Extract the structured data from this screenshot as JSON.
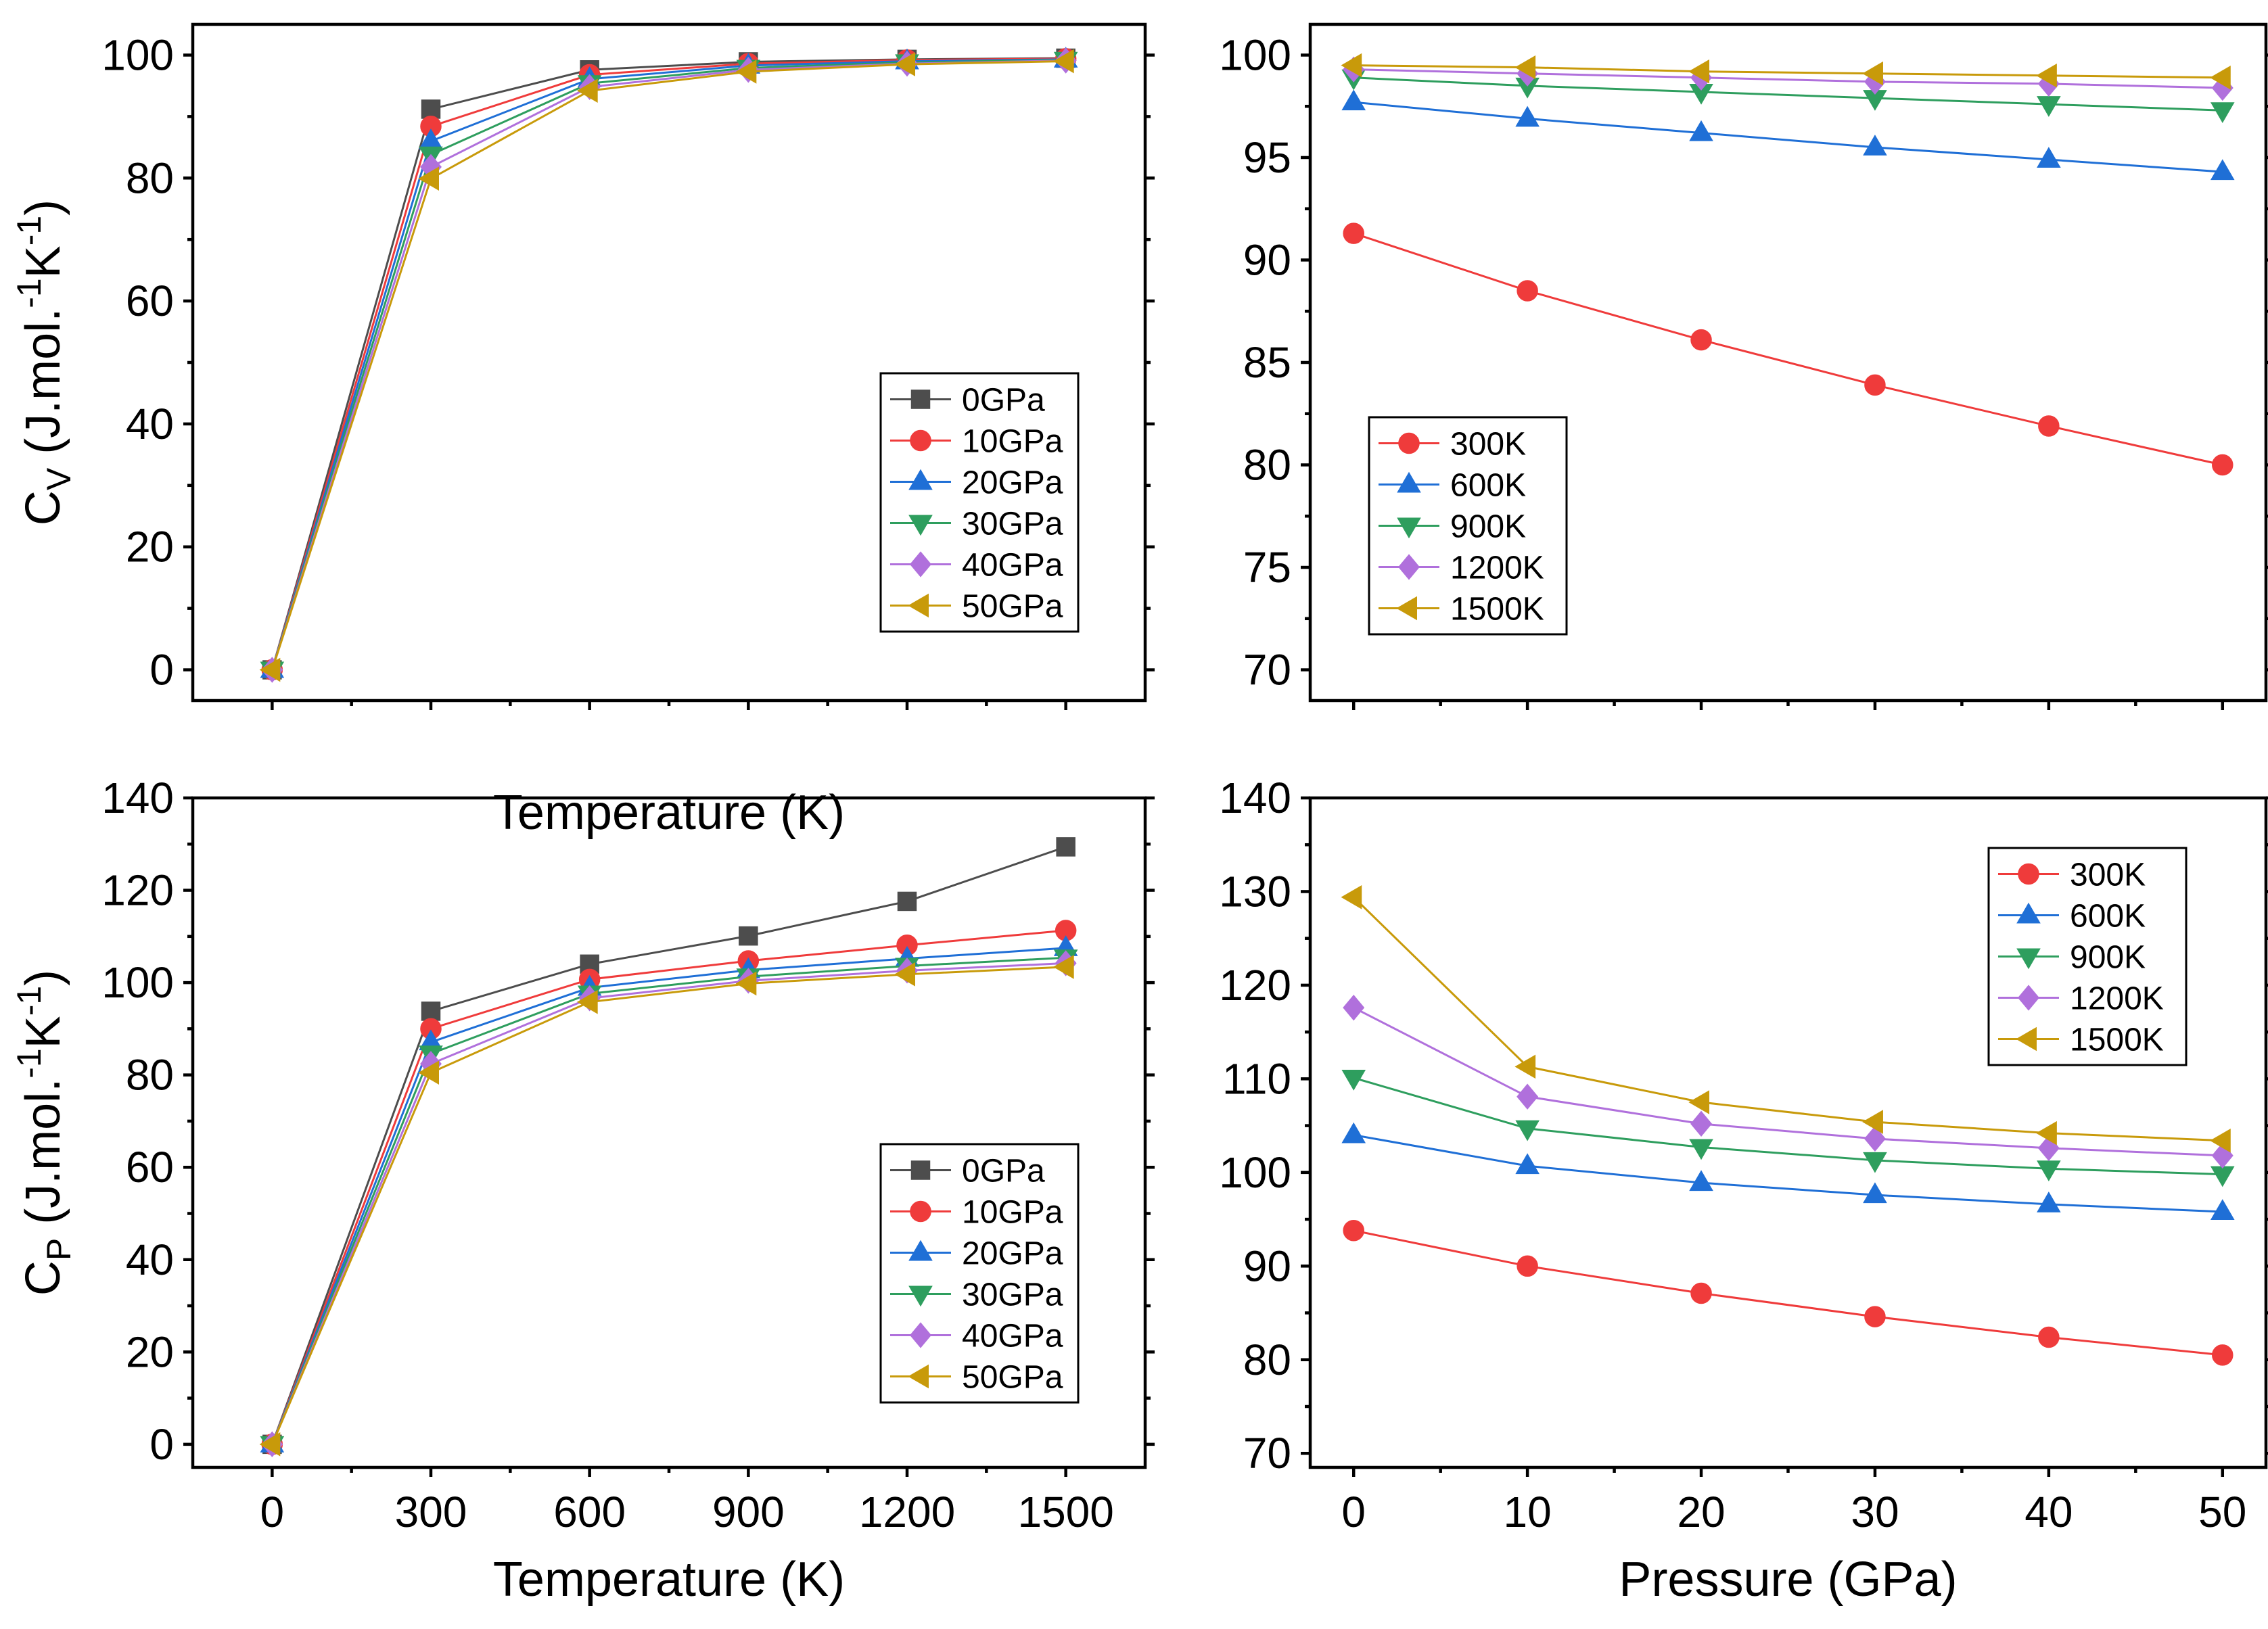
{
  "chart_data": [
    {
      "id": "cv_vs_temperature",
      "type": "line",
      "xlabel": "Temperature (K)",
      "ylabel": "C_V (J.mol.^-1K^-1)",
      "ylabel_main": "C",
      "ylabel_sub": "V",
      "ylabel_units": " (J.mol.",
      "ylabel_sup1": "-1",
      "ylabel_K": "K",
      "ylabel_sup2": "-1",
      "ylabel_close": ")",
      "x": [
        0,
        300,
        600,
        900,
        1200,
        1500
      ],
      "xlim": [
        -150,
        1650
      ],
      "ylim": [
        -5,
        105
      ],
      "yticks": [
        0,
        20,
        40,
        60,
        80,
        100
      ],
      "xtick_labels_visible": false,
      "legend_position": "lower-right",
      "series": [
        {
          "name": "0GPa",
          "color": "#4d4d4d",
          "marker": "square",
          "values": [
            0,
            91.2,
            97.6,
            98.9,
            99.3,
            99.5
          ]
        },
        {
          "name": "10GPa",
          "color": "#ef3b3b",
          "marker": "circle",
          "values": [
            0,
            88.4,
            96.8,
            98.6,
            99.2,
            99.4
          ]
        },
        {
          "name": "20GPa",
          "color": "#1f6fd6",
          "marker": "triangle-up",
          "values": [
            0,
            86.0,
            96.1,
            98.3,
            99.0,
            99.3
          ]
        },
        {
          "name": "30GPa",
          "color": "#2e9e5e",
          "marker": "triangle-down",
          "values": [
            0,
            83.8,
            95.4,
            97.9,
            98.8,
            99.2
          ]
        },
        {
          "name": "40GPa",
          "color": "#b070dc",
          "marker": "diamond",
          "values": [
            0,
            81.8,
            94.8,
            97.6,
            98.6,
            99.1
          ]
        },
        {
          "name": "50GPa",
          "color": "#c89a0a",
          "marker": "triangle-left",
          "values": [
            0,
            79.9,
            94.2,
            97.3,
            98.5,
            99.0
          ]
        }
      ]
    },
    {
      "id": "cv_vs_pressure",
      "type": "line",
      "xlabel": "",
      "ylabel": "",
      "x": [
        0,
        10,
        20,
        30,
        40,
        50
      ],
      "xlim": [
        -2.5,
        52.5
      ],
      "ylim": [
        68.5,
        101.5
      ],
      "yticks": [
        70,
        75,
        80,
        85,
        90,
        95,
        100
      ],
      "xtick_labels_visible": false,
      "legend_position": "lower-left",
      "series": [
        {
          "name": "300K",
          "color": "#ef3b3b",
          "marker": "circle",
          "values": [
            91.3,
            88.5,
            86.1,
            83.9,
            81.9,
            80.0
          ]
        },
        {
          "name": "600K",
          "color": "#1f6fd6",
          "marker": "triangle-up",
          "values": [
            97.7,
            96.9,
            96.2,
            95.5,
            94.9,
            94.3
          ]
        },
        {
          "name": "900K",
          "color": "#2e9e5e",
          "marker": "triangle-down",
          "values": [
            98.9,
            98.5,
            98.2,
            97.9,
            97.6,
            97.3
          ]
        },
        {
          "name": "1200K",
          "color": "#b070dc",
          "marker": "diamond",
          "values": [
            99.3,
            99.1,
            98.9,
            98.7,
            98.6,
            98.4
          ]
        },
        {
          "name": "1500K",
          "color": "#c89a0a",
          "marker": "triangle-left",
          "values": [
            99.5,
            99.4,
            99.2,
            99.1,
            99.0,
            98.9
          ]
        }
      ]
    },
    {
      "id": "cp_vs_temperature",
      "type": "line",
      "xlabel": "Temperature (K)",
      "ylabel": "C_P (J.mol.^-1K^-1)",
      "ylabel_main": "C",
      "ylabel_sub": "P",
      "ylabel_units": " (J.mol.",
      "ylabel_sup1": "-1",
      "ylabel_K": "K",
      "ylabel_sup2": "-1",
      "ylabel_close": ")",
      "x": [
        0,
        300,
        600,
        900,
        1200,
        1500
      ],
      "xticks": [
        0,
        300,
        600,
        900,
        1200,
        1500
      ],
      "xlim": [
        -150,
        1650
      ],
      "ylim": [
        -5,
        140
      ],
      "yticks": [
        0,
        20,
        40,
        60,
        80,
        100,
        120,
        140
      ],
      "xtick_labels_visible": true,
      "legend_position": "lower-right",
      "series": [
        {
          "name": "0GPa",
          "color": "#4d4d4d",
          "marker": "square",
          "values": [
            0,
            93.8,
            104.0,
            110.1,
            117.6,
            129.4
          ]
        },
        {
          "name": "10GPa",
          "color": "#ef3b3b",
          "marker": "circle",
          "values": [
            0,
            90.0,
            100.7,
            104.7,
            108.1,
            111.3
          ]
        },
        {
          "name": "20GPa",
          "color": "#1f6fd6",
          "marker": "triangle-up",
          "values": [
            0,
            87.1,
            98.9,
            102.7,
            105.2,
            107.5
          ]
        },
        {
          "name": "30GPa",
          "color": "#2e9e5e",
          "marker": "triangle-down",
          "values": [
            0,
            84.6,
            97.6,
            101.3,
            103.6,
            105.4
          ]
        },
        {
          "name": "40GPa",
          "color": "#b070dc",
          "marker": "diamond",
          "values": [
            0,
            82.4,
            96.6,
            100.4,
            102.6,
            104.2
          ]
        },
        {
          "name": "50GPa",
          "color": "#c89a0a",
          "marker": "triangle-left",
          "values": [
            0,
            80.5,
            95.8,
            99.8,
            101.8,
            103.4
          ]
        }
      ]
    },
    {
      "id": "cp_vs_pressure",
      "type": "line",
      "xlabel": "Pressure (GPa)",
      "ylabel": "",
      "x": [
        0,
        10,
        20,
        30,
        40,
        50
      ],
      "xticks": [
        0,
        10,
        20,
        30,
        40,
        50
      ],
      "xlim": [
        -2.5,
        52.5
      ],
      "ylim": [
        68.5,
        140
      ],
      "yticks": [
        70,
        80,
        90,
        100,
        110,
        120,
        130,
        140
      ],
      "xtick_labels_visible": true,
      "legend_position": "top-right",
      "series": [
        {
          "name": "300K",
          "color": "#ef3b3b",
          "marker": "circle",
          "values": [
            93.8,
            90.0,
            87.1,
            84.6,
            82.4,
            80.5
          ]
        },
        {
          "name": "600K",
          "color": "#1f6fd6",
          "marker": "triangle-up",
          "values": [
            104.0,
            100.7,
            98.9,
            97.6,
            96.6,
            95.8
          ]
        },
        {
          "name": "900K",
          "color": "#2e9e5e",
          "marker": "triangle-down",
          "values": [
            110.1,
            104.7,
            102.7,
            101.3,
            100.4,
            99.8
          ]
        },
        {
          "name": "1200K",
          "color": "#b070dc",
          "marker": "diamond",
          "values": [
            117.6,
            108.1,
            105.2,
            103.6,
            102.6,
            101.8
          ]
        },
        {
          "name": "1500K",
          "color": "#c89a0a",
          "marker": "triangle-left",
          "values": [
            129.4,
            111.3,
            107.5,
            105.4,
            104.2,
            103.4
          ]
        }
      ]
    }
  ]
}
